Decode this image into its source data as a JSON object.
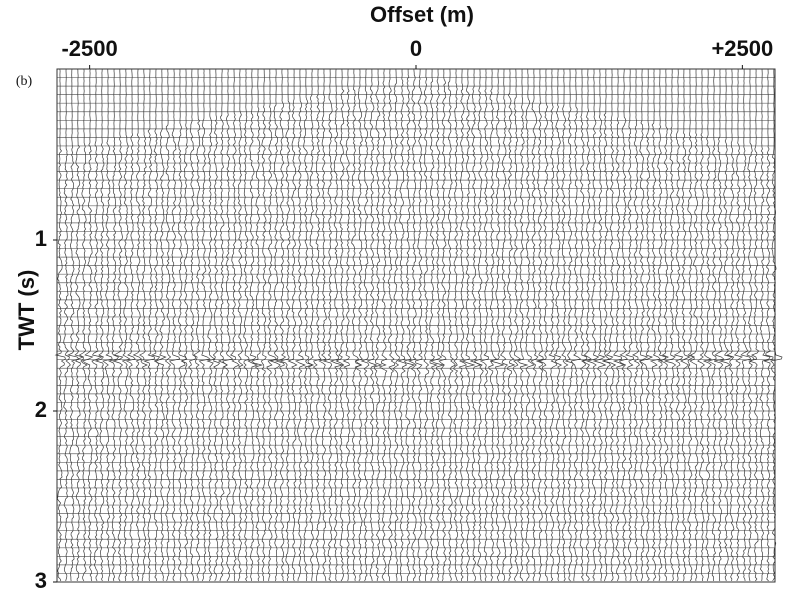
{
  "chart_data": {
    "type": "seismic",
    "title": "Offset (m)",
    "panel_label": "(b)",
    "y_label": "TWT (s)",
    "xlim": [
      -2750,
      2750
    ],
    "xticks": [
      {
        "value": -2500,
        "label": "-2500"
      },
      0,
      {
        "value": 2500,
        "label": "+2500"
      }
    ],
    "ylim": [
      0,
      3
    ],
    "yticks": [
      1,
      2,
      3
    ],
    "y_inverted": true,
    "color": "#3a3a3a"
  }
}
